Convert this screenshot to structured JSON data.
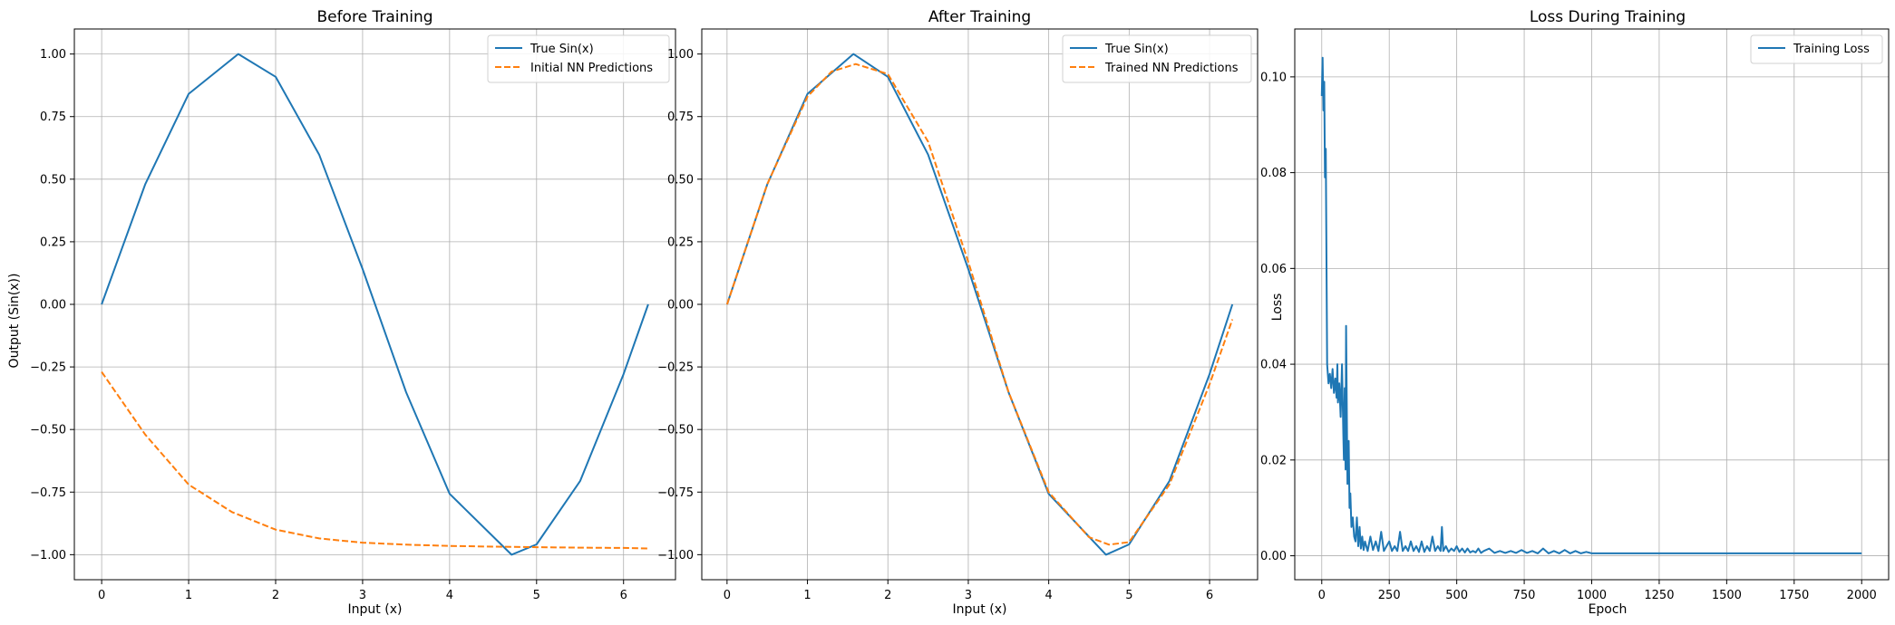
{
  "chart_data": [
    {
      "type": "line",
      "title": "Before Training",
      "xlabel": "Input (x)",
      "ylabel": "Output (Sin(x))",
      "xlim": [
        -0.314,
        6.597
      ],
      "ylim": [
        -1.1,
        1.1
      ],
      "xticks": [
        0,
        1,
        2,
        3,
        4,
        5,
        6
      ],
      "xtick_labels": [
        "0",
        "1",
        "2",
        "3",
        "4",
        "5",
        "6"
      ],
      "yticks": [
        -1.0,
        -0.75,
        -0.5,
        -0.25,
        0.0,
        0.25,
        0.5,
        0.75,
        1.0
      ],
      "ytick_labels": [
        "−1.00",
        "−0.75",
        "−0.50",
        "−0.25",
        "0.00",
        "0.25",
        "0.50",
        "0.75",
        "1.00"
      ],
      "grid": true,
      "legend_position": "top-right",
      "series": [
        {
          "name": "True Sin(x)",
          "color": "#1f77b4",
          "style": "solid",
          "x": [
            0,
            0.5,
            1.0,
            1.5708,
            2.0,
            2.5,
            3.0,
            3.5,
            4.0,
            4.7124,
            5.0,
            5.5,
            6.0,
            6.2832
          ],
          "y": [
            0,
            0.479,
            0.841,
            1.0,
            0.909,
            0.598,
            0.141,
            -0.351,
            -0.757,
            -1.0,
            -0.959,
            -0.706,
            -0.279,
            0
          ]
        },
        {
          "name": "Initial NN Predictions",
          "color": "#ff7f0e",
          "style": "dashed",
          "x": [
            0,
            0.5,
            1.0,
            1.5,
            2.0,
            2.5,
            3.0,
            3.5,
            4.0,
            4.5,
            5.0,
            5.5,
            6.0,
            6.2832
          ],
          "y": [
            -0.27,
            -0.52,
            -0.72,
            -0.83,
            -0.9,
            -0.935,
            -0.952,
            -0.96,
            -0.965,
            -0.968,
            -0.97,
            -0.972,
            -0.973,
            -0.975
          ]
        }
      ]
    },
    {
      "type": "line",
      "title": "After Training",
      "xlabel": "Input (x)",
      "ylabel": "",
      "xlim": [
        -0.314,
        6.597
      ],
      "ylim": [
        -1.1,
        1.1
      ],
      "xticks": [
        0,
        1,
        2,
        3,
        4,
        5,
        6
      ],
      "xtick_labels": [
        "0",
        "1",
        "2",
        "3",
        "4",
        "5",
        "6"
      ],
      "yticks": [
        -1.0,
        -0.75,
        -0.5,
        -0.25,
        0.0,
        0.25,
        0.5,
        0.75,
        1.0
      ],
      "ytick_labels": [
        "−1.00",
        "−0.75",
        "−0.50",
        "−0.25",
        "0.00",
        "0.25",
        "0.50",
        "0.75",
        "1.00"
      ],
      "grid": true,
      "legend_position": "top-right",
      "series": [
        {
          "name": "True Sin(x)",
          "color": "#1f77b4",
          "style": "solid",
          "x": [
            0,
            0.5,
            1.0,
            1.5708,
            2.0,
            2.5,
            3.0,
            3.5,
            4.0,
            4.7124,
            5.0,
            5.5,
            6.0,
            6.2832
          ],
          "y": [
            0,
            0.479,
            0.841,
            1.0,
            0.909,
            0.598,
            0.141,
            -0.351,
            -0.757,
            -1.0,
            -0.959,
            -0.706,
            -0.279,
            0
          ]
        },
        {
          "name": "Trained NN Predictions",
          "color": "#ff7f0e",
          "style": "dashed",
          "x": [
            0,
            0.5,
            1.0,
            1.3,
            1.6,
            2.0,
            2.5,
            3.0,
            3.5,
            4.0,
            4.5,
            4.75,
            5.0,
            5.5,
            6.0,
            6.2832
          ],
          "y": [
            0,
            0.48,
            0.83,
            0.93,
            0.96,
            0.92,
            0.65,
            0.17,
            -0.35,
            -0.75,
            -0.93,
            -0.96,
            -0.95,
            -0.72,
            -0.32,
            -0.06
          ]
        }
      ]
    },
    {
      "type": "line",
      "title": "Loss During Training",
      "xlabel": "Epoch",
      "ylabel": "Loss",
      "xlim": [
        -100,
        2100
      ],
      "ylim": [
        -0.005,
        0.11
      ],
      "xticks": [
        0,
        250,
        500,
        750,
        1000,
        1250,
        1500,
        1750,
        2000
      ],
      "xtick_labels": [
        "0",
        "250",
        "500",
        "750",
        "1000",
        "1250",
        "1500",
        "1750",
        "2000"
      ],
      "yticks": [
        0.0,
        0.02,
        0.04,
        0.06,
        0.08,
        0.1
      ],
      "ytick_labels": [
        "0.00",
        "0.02",
        "0.04",
        "0.06",
        "0.08",
        "0.10"
      ],
      "grid": true,
      "legend_position": "top-right",
      "series": [
        {
          "name": "Training Loss",
          "color": "#1f77b4",
          "style": "solid",
          "x": [
            0,
            3,
            6,
            9,
            12,
            15,
            20,
            25,
            30,
            35,
            40,
            45,
            50,
            55,
            58,
            60,
            65,
            70,
            75,
            80,
            82,
            85,
            88,
            90,
            95,
            100,
            103,
            106,
            110,
            115,
            120,
            125,
            130,
            135,
            140,
            145,
            150,
            155,
            160,
            170,
            180,
            190,
            200,
            210,
            220,
            230,
            240,
            250,
            260,
            270,
            280,
            290,
            300,
            310,
            320,
            330,
            340,
            350,
            360,
            370,
            380,
            390,
            400,
            410,
            420,
            430,
            440,
            445,
            450,
            460,
            470,
            480,
            490,
            500,
            510,
            520,
            530,
            540,
            550,
            560,
            570,
            580,
            590,
            600,
            620,
            640,
            660,
            680,
            700,
            720,
            740,
            760,
            780,
            800,
            820,
            840,
            860,
            880,
            900,
            920,
            940,
            960,
            980,
            1000,
            1100,
            1200,
            1300,
            1400,
            1500,
            1600,
            1700,
            1800,
            1900,
            2000
          ],
          "y": [
            0.096,
            0.104,
            0.093,
            0.099,
            0.079,
            0.085,
            0.04,
            0.036,
            0.038,
            0.035,
            0.039,
            0.034,
            0.037,
            0.033,
            0.04,
            0.032,
            0.036,
            0.029,
            0.04,
            0.025,
            0.02,
            0.035,
            0.018,
            0.048,
            0.015,
            0.024,
            0.01,
            0.013,
            0.006,
            0.008,
            0.004,
            0.003,
            0.008,
            0.002,
            0.006,
            0.0015,
            0.004,
            0.0012,
            0.003,
            0.001,
            0.004,
            0.0012,
            0.003,
            0.001,
            0.005,
            0.001,
            0.002,
            0.003,
            0.001,
            0.002,
            0.001,
            0.005,
            0.001,
            0.002,
            0.001,
            0.003,
            0.001,
            0.002,
            0.0008,
            0.003,
            0.0008,
            0.002,
            0.001,
            0.004,
            0.001,
            0.002,
            0.001,
            0.006,
            0.001,
            0.002,
            0.0008,
            0.0015,
            0.001,
            0.002,
            0.0008,
            0.0015,
            0.0007,
            0.0015,
            0.0007,
            0.001,
            0.0007,
            0.0015,
            0.0006,
            0.001,
            0.0015,
            0.0006,
            0.001,
            0.0006,
            0.001,
            0.0006,
            0.0012,
            0.0006,
            0.001,
            0.0005,
            0.0015,
            0.0005,
            0.001,
            0.0005,
            0.0012,
            0.0005,
            0.001,
            0.0005,
            0.0008,
            0.0005,
            0.0005,
            0.0005,
            0.0005,
            0.0005,
            0.0005,
            0.0005,
            0.0005,
            0.0005,
            0.0005,
            0.0005
          ]
        }
      ]
    }
  ]
}
